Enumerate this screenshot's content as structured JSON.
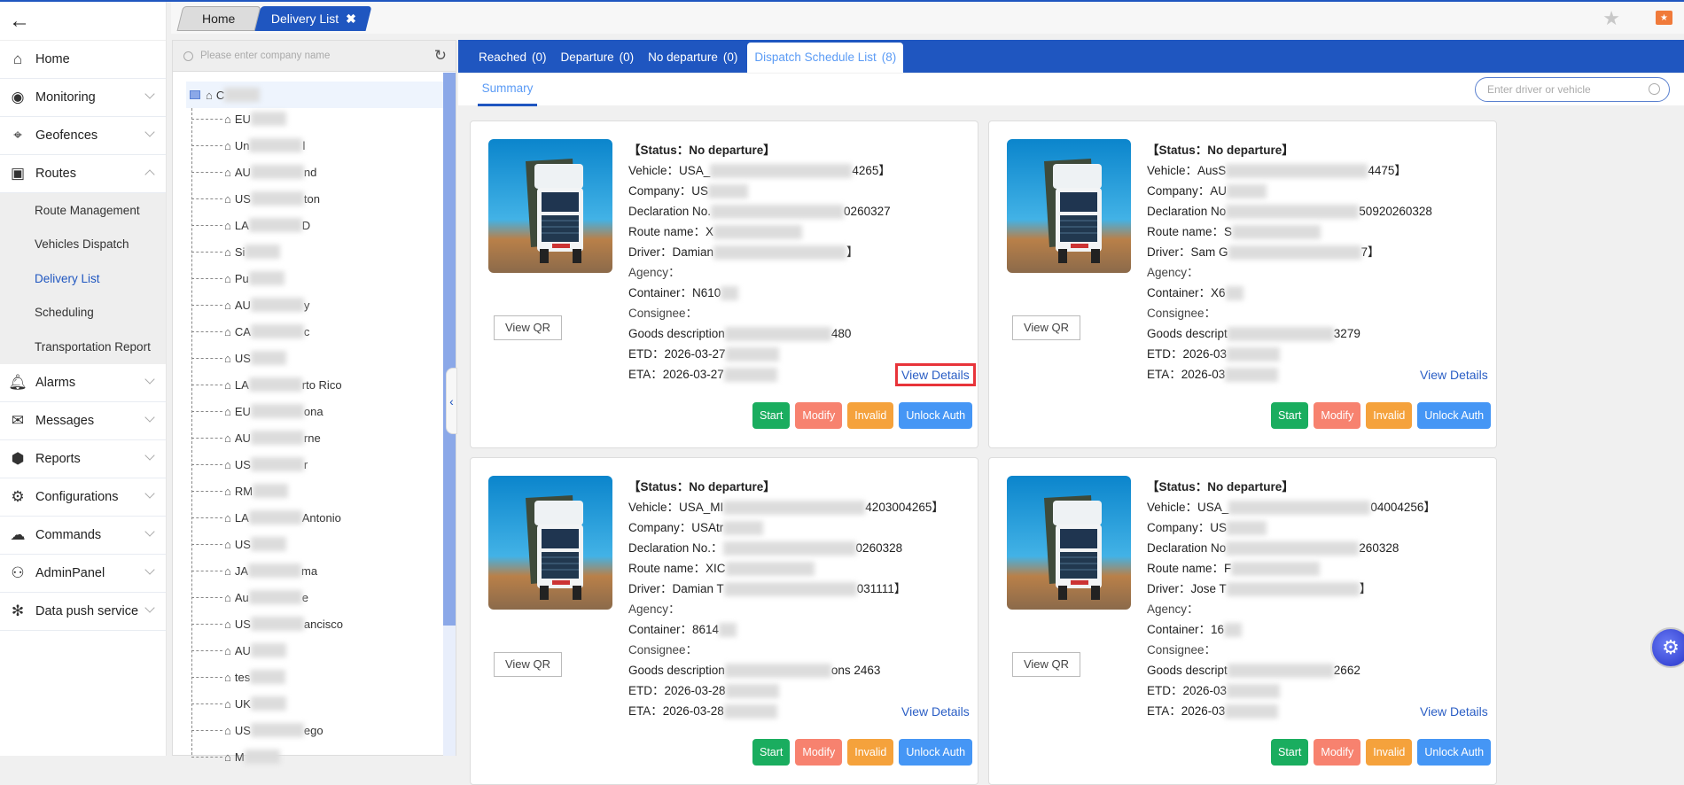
{
  "colors": {
    "brand": "#1f56c0",
    "start": "#1aad5f",
    "modify": "#f7826f",
    "invalid": "#f5a23c",
    "unlock": "#4596f5",
    "highlight": "#e8343a"
  },
  "sidebar": {
    "back_icon": "arrow-left-icon",
    "items": [
      {
        "label": "Home",
        "icon": "home-icon",
        "glyph": "⌂",
        "chevron": "none"
      },
      {
        "label": "Monitoring",
        "icon": "camera-icon",
        "glyph": "◉",
        "chevron": "down"
      },
      {
        "label": "Geofences",
        "icon": "map-pin-icon",
        "glyph": "⌖",
        "chevron": "down"
      },
      {
        "label": "Routes",
        "icon": "bus-icon",
        "glyph": "▣",
        "chevron": "up",
        "children": [
          "Route Management",
          "Vehicles Dispatch",
          "Delivery List",
          "Scheduling",
          "Transportation Report"
        ],
        "active_child": "Delivery List"
      },
      {
        "label": "Alarms",
        "icon": "bell-icon",
        "glyph": "🔔︎",
        "chevron": "down"
      },
      {
        "label": "Messages",
        "icon": "envelope-icon",
        "glyph": "✉",
        "chevron": "down"
      },
      {
        "label": "Reports",
        "icon": "shield-icon",
        "glyph": "⬢",
        "chevron": "down"
      },
      {
        "label": "Configurations",
        "icon": "gear-list-icon",
        "glyph": "⚙",
        "chevron": "down"
      },
      {
        "label": "Commands",
        "icon": "cloud-signal-icon",
        "glyph": "☁",
        "chevron": "down"
      },
      {
        "label": "AdminPanel",
        "icon": "user-gear-icon",
        "glyph": "⚇",
        "chevron": "down"
      },
      {
        "label": "Data push service",
        "icon": "network-icon",
        "glyph": "✻",
        "chevron": "down"
      }
    ]
  },
  "page_tabs": {
    "home": "Home",
    "delivery_list": "Delivery List",
    "close": "✖"
  },
  "tree": {
    "placeholder": "Please enter company name",
    "root": "C",
    "nodes": [
      {
        "pre": "EU",
        "post": ""
      },
      {
        "pre": "Un",
        "post": "l"
      },
      {
        "pre": "AU",
        "post": "nd"
      },
      {
        "pre": "US",
        "post": "ton"
      },
      {
        "pre": "LA",
        "post": "D"
      },
      {
        "pre": "Si",
        "post": ""
      },
      {
        "pre": "Pu",
        "post": ""
      },
      {
        "pre": "AU",
        "post": "y"
      },
      {
        "pre": "CA",
        "post": "c"
      },
      {
        "pre": "US",
        "post": ""
      },
      {
        "pre": "LA",
        "post": "rto Rico"
      },
      {
        "pre": "EU",
        "post": "ona"
      },
      {
        "pre": "AU",
        "post": "rne"
      },
      {
        "pre": "US",
        "post": "r"
      },
      {
        "pre": "RM",
        "post": ""
      },
      {
        "pre": "LA",
        "post": "Antonio"
      },
      {
        "pre": "US",
        "post": ""
      },
      {
        "pre": "JA",
        "post": "ma"
      },
      {
        "pre": "Au",
        "post": "e"
      },
      {
        "pre": "US",
        "post": "ancisco"
      },
      {
        "pre": "AU",
        "post": ""
      },
      {
        "pre": "tes",
        "post": ""
      },
      {
        "pre": "UK",
        "post": ""
      },
      {
        "pre": "US",
        "post": "ego"
      },
      {
        "pre": "M",
        "post": ""
      }
    ]
  },
  "status_tabs": [
    {
      "label": "Reached",
      "count": "(0)"
    },
    {
      "label": "Departure",
      "count": "(0)"
    },
    {
      "label": "No departure",
      "count": "(0)"
    },
    {
      "label": "Dispatch Schedule List",
      "count": "(8)",
      "active": true
    }
  ],
  "summary_tab": "Summary",
  "search_placeholder": "Enter driver or vehicle",
  "card_labels": {
    "view_qr": "View QR",
    "view_details": "View Details",
    "start": "Start",
    "modify": "Modify",
    "invalid": "Invalid",
    "unlock": "Unlock Auth"
  },
  "cards": [
    {
      "status": "【Status：No departure】",
      "vehicle": [
        "Vehicle：USA_",
        "4265】"
      ],
      "company": [
        "Company：US",
        ""
      ],
      "declaration": [
        "Declaration No.",
        "0260327"
      ],
      "route": [
        "Route name：X",
        ""
      ],
      "driver": [
        "Driver：Damian",
        "】"
      ],
      "agency": "Agency：",
      "container": [
        "Container：N610",
        ""
      ],
      "consignee": "Consignee：",
      "goods": [
        "Goods description",
        "480"
      ],
      "etd": [
        "ETD：2026-03-27",
        ""
      ],
      "eta": [
        "ETA：2026-03-27",
        ""
      ],
      "highlighted": true
    },
    {
      "status": "【Status：No departure】",
      "vehicle": [
        "Vehicle：AusS",
        "4475】"
      ],
      "company": [
        "Company：AU",
        ""
      ],
      "declaration": [
        "Declaration No",
        "50920260328"
      ],
      "route": [
        "Route name：S",
        ""
      ],
      "driver": [
        "Driver：Sam G",
        "7】"
      ],
      "agency": "Agency：",
      "container": [
        "Container：X6",
        ""
      ],
      "consignee": "Consignee：",
      "goods": [
        "Goods descript",
        "3279"
      ],
      "etd": [
        "ETD：2026-03",
        ""
      ],
      "eta": [
        "ETA：2026-03",
        ""
      ],
      "highlighted": false
    },
    {
      "status": "【Status：No departure】",
      "vehicle": [
        "Vehicle：USA_MI",
        "4203004265】"
      ],
      "company": [
        "Company：USAtr",
        ""
      ],
      "declaration": [
        "Declaration No.：",
        "0260328"
      ],
      "route": [
        "Route name：XIC",
        ""
      ],
      "driver": [
        "Driver：Damian T",
        "031111】"
      ],
      "agency": "Agency：",
      "container": [
        "Container：8614",
        ""
      ],
      "consignee": "Consignee：",
      "goods": [
        "Goods description",
        "ons 2463"
      ],
      "etd": [
        "ETD：2026-03-28",
        ""
      ],
      "eta": [
        "ETA：2026-03-28",
        ""
      ],
      "highlighted": false
    },
    {
      "status": "【Status：No departure】",
      "vehicle": [
        "Vehicle：USA_",
        "04004256】"
      ],
      "company": [
        "Company：US",
        ""
      ],
      "declaration": [
        "Declaration No",
        "260328"
      ],
      "route": [
        "Route name：F",
        ""
      ],
      "driver": [
        "Driver：Jose T",
        "】"
      ],
      "agency": "Agency：",
      "container": [
        "Container：16",
        ""
      ],
      "consignee": "Consignee：",
      "goods": [
        "Goods descript",
        "2662"
      ],
      "etd": [
        "ETD：2026-03",
        ""
      ],
      "eta": [
        "ETA：2026-03",
        ""
      ],
      "highlighted": false
    }
  ]
}
